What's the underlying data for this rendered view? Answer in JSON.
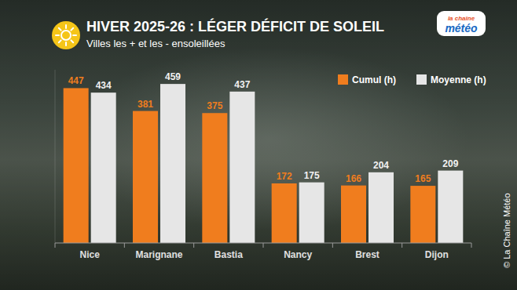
{
  "chart_data": {
    "type": "bar",
    "title": "HIVER 2025-26 : LÉGER DÉFICIT DE SOLEIL",
    "subtitle": "Villes les + et les - ensoleillées",
    "logo": [
      "la chaîne",
      "météo"
    ],
    "source": "© La Chaîne Météo",
    "categories": [
      "Nice",
      "Marignane",
      "Bastia",
      "Nancy",
      "Brest",
      "Dijon"
    ],
    "series": [
      {
        "name": "Cumul (h)",
        "color": "#f07d1e",
        "values": [
          447,
          381,
          375,
          172,
          166,
          165
        ]
      },
      {
        "name": "Moyenne (h)",
        "color": "#e6e6e6",
        "values": [
          434,
          459,
          437,
          175,
          204,
          209
        ]
      }
    ],
    "ylim": [
      0,
      500
    ],
    "grid": false,
    "legend": "top-right",
    "data_labels": true,
    "tick_labels": "x"
  }
}
